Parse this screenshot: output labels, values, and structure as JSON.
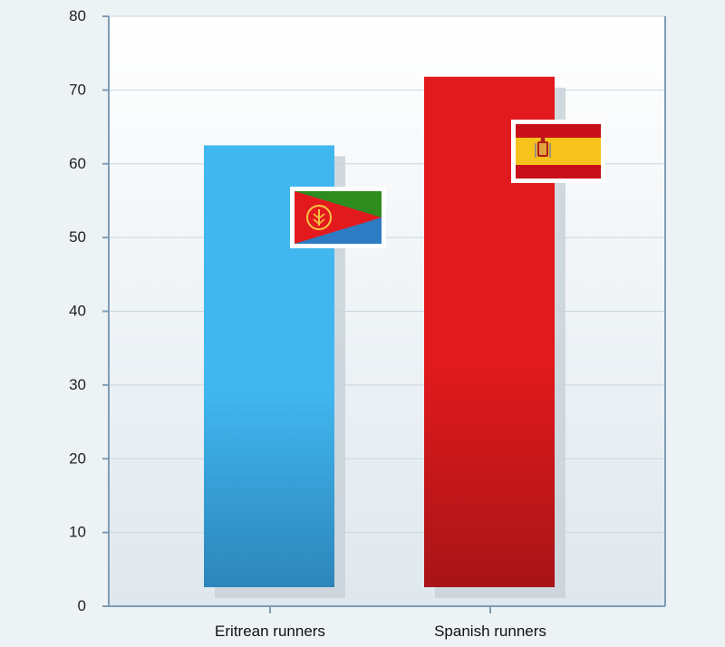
{
  "chart_data": {
    "type": "bar",
    "title": "",
    "xlabel": "",
    "ylabel": "",
    "categories": [
      "Eritrean runners",
      "Spanish runners"
    ],
    "values": [
      62.5,
      71.8
    ],
    "ylim": [
      0,
      80
    ],
    "yticks": [
      0,
      10,
      20,
      30,
      40,
      50,
      60,
      70,
      80
    ],
    "grid": true,
    "legend": "none",
    "colors": {
      "bars": [
        "#41b7f0",
        "#e31a1d"
      ],
      "bars_dark": [
        "#2d86bb",
        "#a81417"
      ],
      "axis": "#7f9db5",
      "grid": "#c7d6e1",
      "plot_bg_top": "#ffffff",
      "plot_bg_bottom": "#dfe8ee",
      "page_bg": "#edf2f5"
    },
    "flag_icons": [
      "eritrea-flag-icon",
      "spain-flag-icon"
    ]
  }
}
